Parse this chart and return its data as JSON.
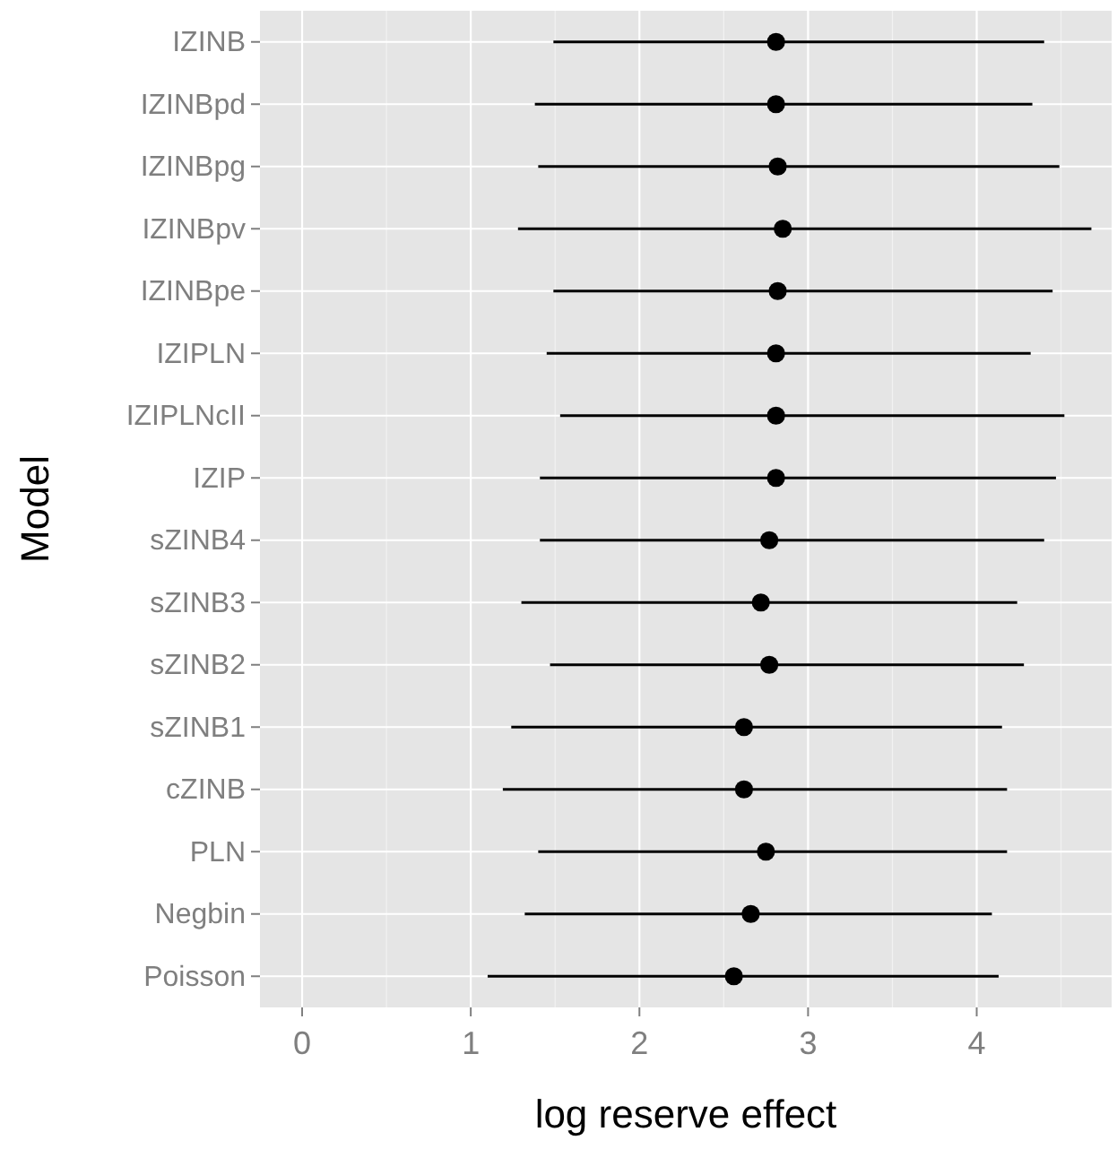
{
  "chart_data": {
    "type": "scatter",
    "orientation": "horizontal",
    "xlabel": "log reserve effect",
    "ylabel": "Model",
    "categories": [
      "IZINB",
      "IZINBpd",
      "IZINBpg",
      "IZINBpv",
      "IZINBpe",
      "IZIPLN",
      "IZIPLNcII",
      "IZIP",
      "sZINB4",
      "sZINB3",
      "sZINB2",
      "sZINB1",
      "cZINB",
      "PLN",
      "Negbin",
      "Poisson"
    ],
    "values": [
      2.81,
      2.81,
      2.82,
      2.85,
      2.82,
      2.81,
      2.81,
      2.81,
      2.77,
      2.72,
      2.77,
      2.62,
      2.62,
      2.75,
      2.66,
      2.56
    ],
    "errors": [
      [
        1.49,
        4.4
      ],
      [
        1.38,
        4.33
      ],
      [
        1.4,
        4.49
      ],
      [
        1.28,
        4.68
      ],
      [
        1.49,
        4.45
      ],
      [
        1.45,
        4.32
      ],
      [
        1.53,
        4.52
      ],
      [
        1.41,
        4.47
      ],
      [
        1.41,
        4.4
      ],
      [
        1.3,
        4.24
      ],
      [
        1.47,
        4.28
      ],
      [
        1.24,
        4.15
      ],
      [
        1.19,
        4.18
      ],
      [
        1.4,
        4.18
      ],
      [
        1.32,
        4.09
      ],
      [
        1.1,
        4.13
      ]
    ],
    "color": "#000000",
    "xlim": [
      -0.25,
      4.8
    ],
    "xticks": [
      0,
      1,
      2,
      3,
      4
    ],
    "grid": true,
    "marker": "circle"
  }
}
